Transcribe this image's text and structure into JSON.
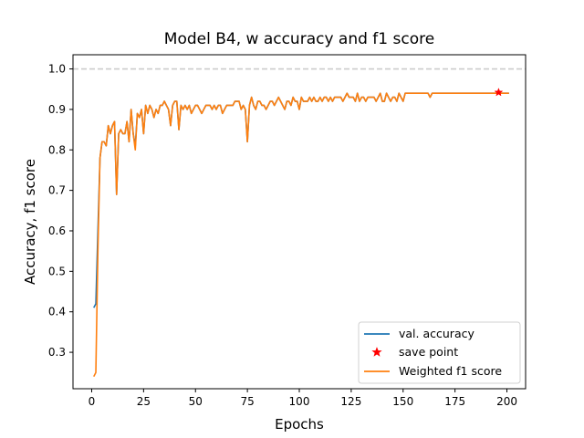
{
  "chart_data": {
    "type": "line",
    "title": "Model B4, w accuracy and f1 score",
    "xlabel": "Epochs",
    "ylabel": "Accuracy, f1 score",
    "xlim": [
      -9,
      209
    ],
    "ylim": [
      0.21,
      1.035
    ],
    "xticks": [
      "0",
      "25",
      "50",
      "75",
      "100",
      "125",
      "150",
      "175",
      "200"
    ],
    "yticks": [
      "0.3",
      "0.4",
      "0.5",
      "0.6",
      "0.7",
      "0.8",
      "0.9",
      "1.0"
    ],
    "grid": false,
    "legend_position": "lower right",
    "reference_line": {
      "y": 1.0,
      "style": "dashed",
      "color": "#cccccc"
    },
    "epochs": [
      1,
      2,
      3,
      4,
      5,
      6,
      7,
      8,
      9,
      10,
      11,
      12,
      13,
      14,
      15,
      16,
      17,
      18,
      19,
      20,
      21,
      22,
      23,
      24,
      25,
      26,
      27,
      28,
      29,
      30,
      31,
      32,
      33,
      34,
      35,
      36,
      37,
      38,
      39,
      40,
      41,
      42,
      43,
      44,
      45,
      46,
      47,
      48,
      49,
      50,
      51,
      52,
      53,
      54,
      55,
      56,
      57,
      58,
      59,
      60,
      61,
      62,
      63,
      64,
      65,
      66,
      67,
      68,
      69,
      70,
      71,
      72,
      73,
      74,
      75,
      76,
      77,
      78,
      79,
      80,
      81,
      82,
      83,
      84,
      85,
      86,
      87,
      88,
      89,
      90,
      91,
      92,
      93,
      94,
      95,
      96,
      97,
      98,
      99,
      100,
      101,
      102,
      103,
      104,
      105,
      106,
      107,
      108,
      109,
      110,
      111,
      112,
      113,
      114,
      115,
      116,
      117,
      118,
      119,
      120,
      121,
      122,
      123,
      124,
      125,
      126,
      127,
      128,
      129,
      130,
      131,
      132,
      133,
      134,
      135,
      136,
      137,
      138,
      139,
      140,
      141,
      142,
      143,
      144,
      145,
      146,
      147,
      148,
      149,
      150,
      151,
      152,
      153,
      154,
      155,
      156,
      157,
      158,
      159,
      160,
      161,
      162,
      163,
      164,
      165,
      166,
      167,
      168,
      169,
      170,
      171,
      172,
      173,
      174,
      175,
      176,
      177,
      178,
      179,
      180,
      181,
      182,
      183,
      184,
      185,
      186,
      187,
      188,
      189,
      190,
      191,
      192,
      193,
      194,
      195,
      196,
      197,
      198,
      199,
      200,
      201
    ],
    "series": [
      {
        "name": "val. accuracy",
        "color": "#1f77b4",
        "values": [
          0.41,
          0.42,
          0.6,
          0.78,
          0.82,
          0.82,
          0.81,
          0.86,
          0.84,
          0.86,
          0.87,
          0.69,
          0.84,
          0.85,
          0.84,
          0.84,
          0.87,
          0.82,
          0.9,
          0.84,
          0.81,
          0.89,
          0.88,
          0.9,
          0.84,
          0.91,
          0.89,
          0.91,
          0.9,
          0.88,
          0.9,
          0.89,
          0.91,
          0.91,
          0.92,
          0.91,
          0.9,
          0.86,
          0.91,
          0.92,
          0.92,
          0.85,
          0.91,
          0.9,
          0.91,
          0.9,
          0.91,
          0.89,
          0.9,
          0.91,
          0.91,
          0.9,
          0.89,
          0.9,
          0.91,
          0.91,
          0.91,
          0.9,
          0.91,
          0.9,
          0.91,
          0.91,
          0.89,
          0.9,
          0.91,
          0.91,
          0.91,
          0.91,
          0.92,
          0.92,
          0.92,
          0.9,
          0.91,
          0.9,
          0.82,
          0.91,
          0.93,
          0.91,
          0.9,
          0.92,
          0.92,
          0.91,
          0.91,
          0.9,
          0.91,
          0.92,
          0.92,
          0.91,
          0.92,
          0.93,
          0.92,
          0.91,
          0.9,
          0.92,
          0.92,
          0.91,
          0.93,
          0.92,
          0.92,
          0.9,
          0.93,
          0.92,
          0.92,
          0.92,
          0.93,
          0.92,
          0.93,
          0.92,
          0.92,
          0.93,
          0.92,
          0.93,
          0.93,
          0.92,
          0.93,
          0.92,
          0.93,
          0.93,
          0.93,
          0.93,
          0.92,
          0.93,
          0.94,
          0.93,
          0.93,
          0.93,
          0.92,
          0.94,
          0.92,
          0.93,
          0.93,
          0.92,
          0.93,
          0.93,
          0.93,
          0.93,
          0.92,
          0.93,
          0.94,
          0.92,
          0.92,
          0.94,
          0.93,
          0.92,
          0.93,
          0.93,
          0.92,
          0.94,
          0.93,
          0.92,
          0.94,
          0.94,
          0.94,
          0.94,
          0.94,
          0.94,
          0.94,
          0.94,
          0.94,
          0.94,
          0.94,
          0.94,
          0.93,
          0.94,
          0.94,
          0.94,
          0.94,
          0.94,
          0.94,
          0.94,
          0.94,
          0.94,
          0.94,
          0.94,
          0.94,
          0.94,
          0.94,
          0.94,
          0.94,
          0.94,
          0.94,
          0.94,
          0.94,
          0.94,
          0.94,
          0.94,
          0.94,
          0.94,
          0.94,
          0.94,
          0.94,
          0.94,
          0.94,
          0.94,
          0.94,
          0.94,
          0.94,
          0.94,
          0.94,
          0.94,
          0.94,
          0.94,
          0.94
        ]
      },
      {
        "name": "Weighted f1 score",
        "color": "#ff7f0e",
        "values": [
          0.24,
          0.25,
          0.55,
          0.78,
          0.82,
          0.82,
          0.81,
          0.86,
          0.84,
          0.86,
          0.87,
          0.69,
          0.84,
          0.85,
          0.84,
          0.84,
          0.87,
          0.82,
          0.9,
          0.84,
          0.8,
          0.89,
          0.88,
          0.9,
          0.84,
          0.91,
          0.89,
          0.91,
          0.9,
          0.88,
          0.9,
          0.89,
          0.91,
          0.91,
          0.92,
          0.91,
          0.9,
          0.86,
          0.91,
          0.92,
          0.92,
          0.85,
          0.91,
          0.9,
          0.91,
          0.9,
          0.91,
          0.89,
          0.9,
          0.91,
          0.91,
          0.9,
          0.89,
          0.9,
          0.91,
          0.91,
          0.91,
          0.9,
          0.91,
          0.9,
          0.91,
          0.91,
          0.89,
          0.9,
          0.91,
          0.91,
          0.91,
          0.91,
          0.92,
          0.92,
          0.92,
          0.9,
          0.91,
          0.9,
          0.82,
          0.91,
          0.93,
          0.91,
          0.9,
          0.92,
          0.92,
          0.91,
          0.91,
          0.9,
          0.91,
          0.92,
          0.92,
          0.91,
          0.92,
          0.93,
          0.92,
          0.91,
          0.9,
          0.92,
          0.92,
          0.91,
          0.93,
          0.92,
          0.92,
          0.9,
          0.93,
          0.92,
          0.92,
          0.92,
          0.93,
          0.92,
          0.93,
          0.92,
          0.92,
          0.93,
          0.92,
          0.93,
          0.93,
          0.92,
          0.93,
          0.92,
          0.93,
          0.93,
          0.93,
          0.93,
          0.92,
          0.93,
          0.94,
          0.93,
          0.93,
          0.93,
          0.92,
          0.94,
          0.92,
          0.93,
          0.93,
          0.92,
          0.93,
          0.93,
          0.93,
          0.93,
          0.92,
          0.93,
          0.94,
          0.92,
          0.92,
          0.94,
          0.93,
          0.92,
          0.93,
          0.93,
          0.92,
          0.94,
          0.93,
          0.92,
          0.94,
          0.94,
          0.94,
          0.94,
          0.94,
          0.94,
          0.94,
          0.94,
          0.94,
          0.94,
          0.94,
          0.94,
          0.93,
          0.94,
          0.94,
          0.94,
          0.94,
          0.94,
          0.94,
          0.94,
          0.94,
          0.94,
          0.94,
          0.94,
          0.94,
          0.94,
          0.94,
          0.94,
          0.94,
          0.94,
          0.94,
          0.94,
          0.94,
          0.94,
          0.94,
          0.94,
          0.94,
          0.94,
          0.94,
          0.94,
          0.94,
          0.94,
          0.94,
          0.94,
          0.94,
          0.94,
          0.94,
          0.94,
          0.94,
          0.94,
          0.94,
          0.94,
          0.945
        ]
      }
    ],
    "save_point": {
      "name": "save point",
      "x": 196,
      "y": 0.942,
      "color": "#ff0000",
      "marker": "star"
    },
    "legend_order": [
      "val. accuracy",
      "save point",
      "Weighted f1 score"
    ]
  }
}
